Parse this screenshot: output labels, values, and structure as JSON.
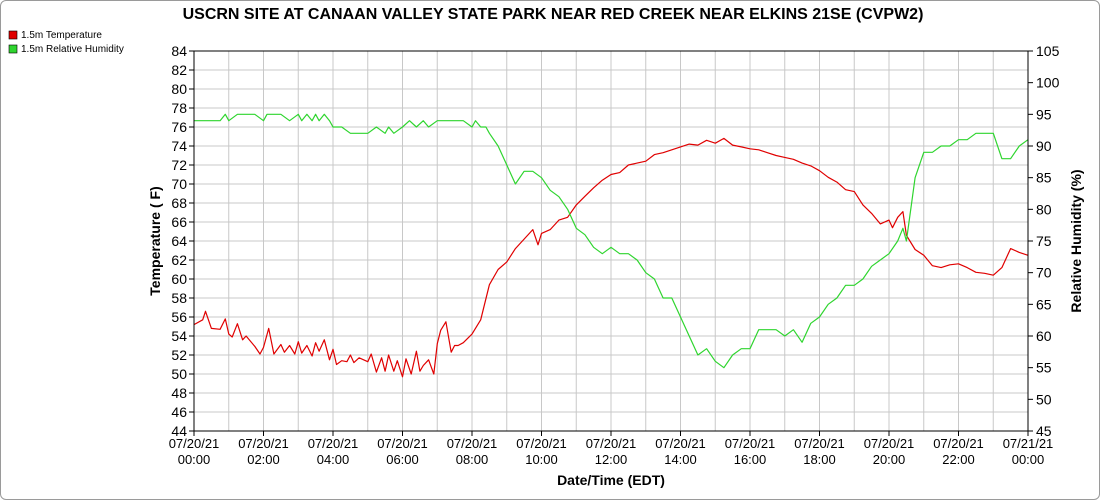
{
  "chart_data": {
    "type": "line",
    "title": "USCRN SITE AT CANAAN VALLEY STATE PARK NEAR RED CREEK NEAR ELKINS 21SE (CVPW2)",
    "xlabel": "Date/Time (EDT)",
    "ylabel_left": "Temperature ( F)",
    "ylabel_right": "Relative Humidity (%)",
    "ylim_left": [
      44,
      84
    ],
    "ylim_right": [
      45,
      105
    ],
    "xlim": [
      "07/20/21 00:00",
      "07/21/21 00:00"
    ],
    "grid": true,
    "legend_placement": "top-left",
    "x_ticks": [
      {
        "date": "07/20/21",
        "time": "00:00"
      },
      {
        "date": "07/20/21",
        "time": "02:00"
      },
      {
        "date": "07/20/21",
        "time": "04:00"
      },
      {
        "date": "07/20/21",
        "time": "06:00"
      },
      {
        "date": "07/20/21",
        "time": "08:00"
      },
      {
        "date": "07/20/21",
        "time": "10:00"
      },
      {
        "date": "07/20/21",
        "time": "12:00"
      },
      {
        "date": "07/20/21",
        "time": "14:00"
      },
      {
        "date": "07/20/21",
        "time": "16:00"
      },
      {
        "date": "07/20/21",
        "time": "18:00"
      },
      {
        "date": "07/20/21",
        "time": "20:00"
      },
      {
        "date": "07/20/21",
        "time": "22:00"
      },
      {
        "date": "07/21/21",
        "time": "00:00"
      }
    ],
    "y_ticks_left": [
      44,
      46,
      48,
      50,
      52,
      54,
      56,
      58,
      60,
      62,
      64,
      66,
      68,
      70,
      72,
      74,
      76,
      78,
      80,
      82,
      84
    ],
    "y_ticks_right": [
      45,
      50,
      55,
      60,
      65,
      70,
      75,
      80,
      85,
      90,
      95,
      100,
      105
    ],
    "series": [
      {
        "name": "1.5m Temperature",
        "color": "#e00000",
        "axis": "left",
        "x_hours": [
          0,
          0.25,
          0.33,
          0.5,
          0.75,
          0.9,
          1.0,
          1.1,
          1.25,
          1.4,
          1.5,
          1.75,
          1.9,
          2.0,
          2.15,
          2.3,
          2.5,
          2.6,
          2.75,
          2.9,
          3.0,
          3.1,
          3.25,
          3.4,
          3.5,
          3.6,
          3.75,
          3.9,
          4.0,
          4.1,
          4.25,
          4.4,
          4.5,
          4.6,
          4.75,
          5.0,
          5.1,
          5.25,
          5.4,
          5.5,
          5.6,
          5.75,
          5.85,
          6.0,
          6.1,
          6.25,
          6.4,
          6.5,
          6.6,
          6.75,
          6.9,
          7.0,
          7.1,
          7.25,
          7.4,
          7.5,
          7.6,
          7.75,
          8.0,
          8.25,
          8.5,
          8.75,
          9.0,
          9.25,
          9.5,
          9.75,
          9.9,
          10.0,
          10.25,
          10.5,
          10.75,
          11.0,
          11.25,
          11.5,
          11.75,
          12.0,
          12.25,
          12.5,
          12.75,
          13.0,
          13.25,
          13.5,
          13.75,
          14.0,
          14.25,
          14.5,
          14.75,
          15.0,
          15.25,
          15.5,
          15.75,
          16.0,
          16.25,
          16.5,
          16.75,
          17.0,
          17.25,
          17.5,
          17.75,
          18.0,
          18.25,
          18.5,
          18.75,
          19.0,
          19.25,
          19.5,
          19.75,
          20.0,
          20.1,
          20.25,
          20.4,
          20.5,
          20.75,
          21.0,
          21.25,
          21.5,
          21.75,
          22.0,
          22.25,
          22.5,
          22.75,
          23.0,
          23.25,
          23.5,
          23.75,
          24.0
        ],
        "values": [
          55.2,
          55.7,
          56.6,
          54.8,
          54.7,
          55.8,
          54.2,
          53.9,
          55.3,
          53.6,
          54.0,
          52.9,
          52.1,
          52.8,
          54.8,
          52.1,
          53.1,
          52.3,
          53.0,
          52.1,
          53.4,
          52.2,
          53.0,
          51.9,
          53.3,
          52.4,
          53.6,
          51.5,
          52.6,
          51.0,
          51.4,
          51.3,
          52.0,
          51.2,
          51.7,
          51.3,
          52.1,
          50.2,
          51.7,
          50.3,
          52.0,
          50.3,
          51.4,
          49.7,
          51.6,
          50.0,
          52.4,
          50.3,
          50.9,
          51.5,
          50.0,
          53.2,
          54.6,
          55.5,
          52.3,
          53.0,
          53.0,
          53.3,
          54.2,
          55.7,
          59.4,
          61.0,
          61.8,
          63.2,
          64.2,
          65.2,
          63.6,
          64.8,
          65.2,
          66.2,
          66.5,
          67.8,
          68.7,
          69.6,
          70.4,
          71.0,
          71.2,
          72.0,
          72.2,
          72.4,
          73.1,
          73.3,
          73.6,
          73.9,
          74.2,
          74.1,
          74.6,
          74.3,
          74.8,
          74.1,
          73.9,
          73.7,
          73.6,
          73.3,
          73.0,
          72.8,
          72.6,
          72.2,
          71.9,
          71.4,
          70.7,
          70.2,
          69.4,
          69.2,
          67.8,
          66.9,
          65.8,
          66.2,
          65.4,
          66.5,
          67.1,
          64.6,
          63.1,
          62.5,
          61.4,
          61.2,
          61.5,
          61.6,
          61.2,
          60.7,
          60.6,
          60.4,
          61.2,
          63.2,
          62.8,
          62.5
        ]
      },
      {
        "name": "1.5m Relative Humidity",
        "color": "#2fd52f",
        "axis": "right",
        "x_hours": [
          0,
          0.5,
          0.75,
          0.9,
          1.0,
          1.25,
          1.5,
          1.75,
          2.0,
          2.1,
          2.25,
          2.5,
          2.75,
          3.0,
          3.1,
          3.25,
          3.4,
          3.5,
          3.6,
          3.75,
          3.9,
          4.0,
          4.25,
          4.5,
          5.0,
          5.25,
          5.5,
          5.6,
          5.75,
          6.0,
          6.2,
          6.4,
          6.6,
          6.75,
          7.0,
          7.25,
          7.5,
          7.75,
          8.0,
          8.1,
          8.25,
          8.4,
          8.5,
          8.75,
          9.0,
          9.25,
          9.5,
          9.75,
          10.0,
          10.25,
          10.5,
          10.75,
          11.0,
          11.25,
          11.5,
          11.75,
          12.0,
          12.25,
          12.5,
          12.75,
          13.0,
          13.25,
          13.5,
          13.75,
          14.0,
          14.25,
          14.5,
          14.75,
          15.0,
          15.25,
          15.5,
          15.75,
          16.0,
          16.25,
          16.5,
          16.75,
          17.0,
          17.25,
          17.5,
          17.75,
          18.0,
          18.25,
          18.5,
          18.75,
          19.0,
          19.25,
          19.5,
          19.75,
          20.0,
          20.25,
          20.4,
          20.5,
          20.75,
          21.0,
          21.25,
          21.5,
          21.75,
          22.0,
          22.25,
          22.5,
          22.75,
          23.0,
          23.25,
          23.5,
          23.75,
          24.0
        ],
        "values": [
          94,
          94,
          94,
          95,
          94,
          95,
          95,
          95,
          94,
          95,
          95,
          95,
          94,
          95,
          94,
          95,
          94,
          95,
          94,
          95,
          94,
          93,
          93,
          92,
          92,
          93,
          92,
          93,
          92,
          93,
          94,
          93,
          94,
          93,
          94,
          94,
          94,
          94,
          93,
          94,
          93,
          93,
          92,
          90,
          87,
          84,
          86,
          86,
          85,
          83,
          82,
          80,
          77,
          76,
          74,
          73,
          74,
          73,
          73,
          72,
          70,
          69,
          66,
          66,
          63,
          60,
          57,
          58,
          56,
          55,
          57,
          58,
          58,
          61,
          61,
          61,
          60,
          61,
          59,
          62,
          63,
          65,
          66,
          68,
          68,
          69,
          71,
          72,
          73,
          75,
          77,
          75,
          85,
          89,
          89,
          90,
          90,
          91,
          91,
          92,
          92,
          92,
          88,
          88,
          90,
          91
        ]
      }
    ]
  }
}
